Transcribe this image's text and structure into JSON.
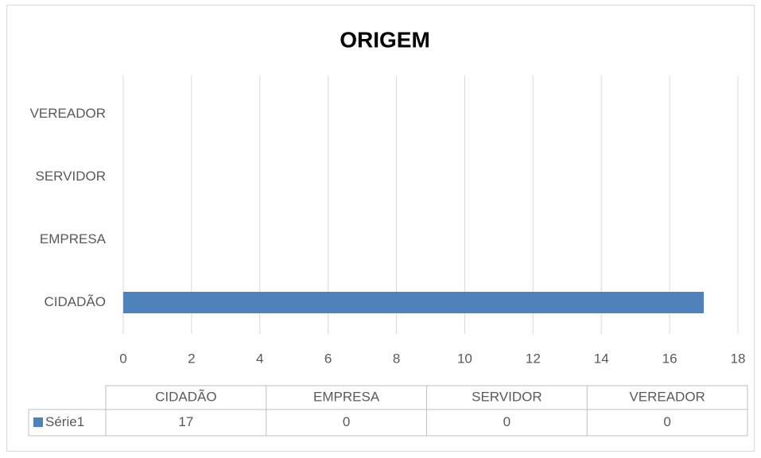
{
  "chart_data": {
    "type": "bar",
    "orientation": "horizontal",
    "title": "ORIGEM",
    "categories": [
      "CIDADÃO",
      "EMPRESA",
      "SERVIDOR",
      "VEREADOR"
    ],
    "series": [
      {
        "name": "Série1",
        "color": "#4f81bd",
        "values": [
          17,
          0,
          0,
          0
        ]
      }
    ],
    "xlim": [
      0,
      18
    ],
    "xticks": [
      0,
      2,
      4,
      6,
      8,
      10,
      12,
      14,
      16,
      18
    ],
    "grid": true,
    "data_table": true
  }
}
